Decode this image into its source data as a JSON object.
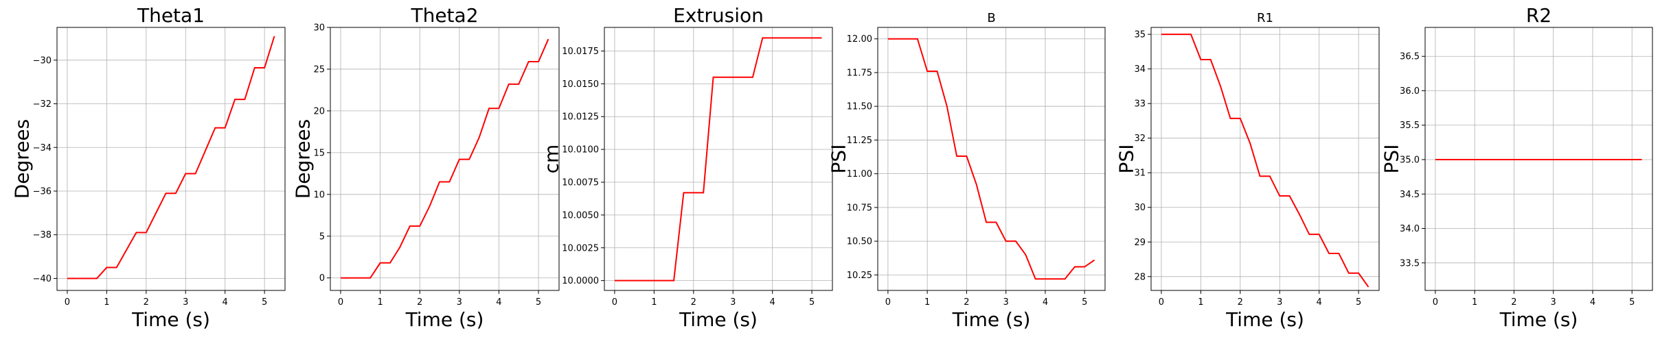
{
  "chart_data": [
    {
      "type": "line",
      "title": "Theta1",
      "xlabel": "Time (s)",
      "ylabel": "Degrees",
      "xlim": [
        -0.26,
        5.52
      ],
      "ylim": [
        -40.55,
        -28.5
      ],
      "xticks": [
        0,
        1,
        2,
        3,
        4,
        5
      ],
      "xtick_labels": [
        "0",
        "1",
        "2",
        "3",
        "4",
        "5"
      ],
      "yticks": [
        -40,
        -38,
        -36,
        -34,
        -32,
        -30
      ],
      "ytick_labels": [
        "−40",
        "−38",
        "−36",
        "−34",
        "−32",
        "−30"
      ],
      "grid": true,
      "series": [
        {
          "color": "#ff0000",
          "x": [
            0,
            0.25,
            0.5,
            0.75,
            1.0,
            1.25,
            1.5,
            1.75,
            2.0,
            2.25,
            2.5,
            2.75,
            3.0,
            3.25,
            3.5,
            3.75,
            4.0,
            4.25,
            4.5,
            4.75,
            5.0,
            5.25
          ],
          "y": [
            -40,
            -40,
            -40,
            -40,
            -39.5,
            -39.5,
            -38.7,
            -37.9,
            -37.9,
            -37.0,
            -36.1,
            -36.1,
            -35.2,
            -35.2,
            -34.15,
            -33.1,
            -33.1,
            -31.8,
            -31.8,
            -30.35,
            -30.35,
            -28.9
          ]
        }
      ]
    },
    {
      "type": "line",
      "title": "Theta2",
      "xlabel": "Time (s)",
      "ylabel": "Degrees",
      "xlim": [
        -0.26,
        5.52
      ],
      "ylim": [
        -1.5,
        30
      ],
      "xticks": [
        0,
        1,
        2,
        3,
        4,
        5
      ],
      "xtick_labels": [
        "0",
        "1",
        "2",
        "3",
        "4",
        "5"
      ],
      "yticks": [
        0,
        5,
        10,
        15,
        20,
        25,
        30
      ],
      "ytick_labels": [
        "0",
        "5",
        "10",
        "15",
        "20",
        "25",
        "30"
      ],
      "grid": true,
      "series": [
        {
          "color": "#ff0000",
          "x": [
            0,
            0.25,
            0.5,
            0.75,
            1.0,
            1.25,
            1.5,
            1.75,
            2.0,
            2.25,
            2.5,
            2.75,
            3.0,
            3.25,
            3.5,
            3.75,
            4.0,
            4.25,
            4.5,
            4.75,
            5.0,
            5.25
          ],
          "y": [
            0,
            0,
            0,
            0,
            1.8,
            1.8,
            3.7,
            6.2,
            6.2,
            8.6,
            11.5,
            11.5,
            14.2,
            14.2,
            16.8,
            20.3,
            20.3,
            23.2,
            23.2,
            25.9,
            25.9,
            28.6
          ]
        }
      ]
    },
    {
      "type": "line",
      "title": "Extrusion",
      "xlabel": "Time (s)",
      "ylabel": "cm",
      "xlim": [
        -0.26,
        5.52
      ],
      "ylim": [
        9.99925,
        10.0193
      ],
      "xticks": [
        0,
        1,
        2,
        3,
        4,
        5
      ],
      "xtick_labels": [
        "0",
        "1",
        "2",
        "3",
        "4",
        "5"
      ],
      "yticks": [
        10.0,
        10.0025,
        10.005,
        10.0075,
        10.01,
        10.0125,
        10.015,
        10.0175
      ],
      "ytick_labels": [
        "10.0000",
        "10.0025",
        "10.0050",
        "10.0075",
        "10.0100",
        "10.0125",
        "10.0150",
        "10.0175"
      ],
      "grid": true,
      "series": [
        {
          "color": "#ff0000",
          "x": [
            0,
            0.25,
            0.5,
            0.75,
            1.0,
            1.25,
            1.5,
            1.75,
            2.0,
            2.25,
            2.5,
            2.75,
            3.0,
            3.25,
            3.5,
            3.75,
            4.0,
            4.25,
            4.5,
            4.75,
            5.0,
            5.25
          ],
          "y": [
            10.0,
            10.0,
            10.0,
            10.0,
            10.0,
            10.0,
            10.0,
            10.0067,
            10.0067,
            10.0067,
            10.0155,
            10.0155,
            10.0155,
            10.0155,
            10.0155,
            10.0185,
            10.0185,
            10.0185,
            10.0185,
            10.0185,
            10.0185,
            10.0185
          ]
        }
      ]
    },
    {
      "type": "line",
      "title": "B",
      "xlabel": "Time (s)",
      "ylabel": "PSI",
      "xlim": [
        -0.26,
        5.52
      ],
      "ylim": [
        10.135,
        12.085
      ],
      "xticks": [
        0,
        1,
        2,
        3,
        4,
        5
      ],
      "xtick_labels": [
        "0",
        "1",
        "2",
        "3",
        "4",
        "5"
      ],
      "yticks": [
        10.25,
        10.5,
        10.75,
        11.0,
        11.25,
        11.5,
        11.75,
        12.0
      ],
      "ytick_labels": [
        "10.25",
        "10.50",
        "10.75",
        "11.00",
        "11.25",
        "11.50",
        "11.75",
        "12.00"
      ],
      "grid": true,
      "series": [
        {
          "color": "#ff0000",
          "x": [
            0,
            0.25,
            0.5,
            0.75,
            1.0,
            1.25,
            1.5,
            1.75,
            2.0,
            2.25,
            2.5,
            2.75,
            3.0,
            3.25,
            3.5,
            3.75,
            4.0,
            4.25,
            4.5,
            4.75,
            5.0,
            5.25
          ],
          "y": [
            12.0,
            12.0,
            12.0,
            12.0,
            11.76,
            11.76,
            11.5,
            11.13,
            11.13,
            10.92,
            10.64,
            10.64,
            10.5,
            10.5,
            10.4,
            10.22,
            10.22,
            10.22,
            10.22,
            10.31,
            10.31,
            10.36
          ]
        }
      ]
    },
    {
      "type": "line",
      "title": "R1",
      "xlabel": "Time (s)",
      "ylabel": "PSI",
      "xlim": [
        -0.26,
        5.52
      ],
      "ylim": [
        27.6,
        35.2
      ],
      "xticks": [
        0,
        1,
        2,
        3,
        4,
        5
      ],
      "xtick_labels": [
        "0",
        "1",
        "2",
        "3",
        "4",
        "5"
      ],
      "yticks": [
        28,
        29,
        30,
        31,
        32,
        33,
        34,
        35
      ],
      "ytick_labels": [
        "28",
        "29",
        "30",
        "31",
        "32",
        "33",
        "34",
        "35"
      ],
      "grid": true,
      "series": [
        {
          "color": "#ff0000",
          "x": [
            0,
            0.25,
            0.5,
            0.75,
            1.0,
            1.25,
            1.5,
            1.75,
            2.0,
            2.25,
            2.5,
            2.75,
            3.0,
            3.25,
            3.5,
            3.75,
            4.0,
            4.25,
            4.5,
            4.75,
            5.0,
            5.25
          ],
          "y": [
            35.0,
            35.0,
            35.0,
            35.0,
            34.27,
            34.27,
            33.5,
            32.57,
            32.57,
            31.85,
            30.9,
            30.9,
            30.33,
            30.33,
            29.8,
            29.22,
            29.22,
            28.67,
            28.67,
            28.1,
            28.1,
            27.7
          ]
        }
      ]
    },
    {
      "type": "line",
      "title": "R2",
      "xlabel": "Time (s)",
      "ylabel": "PSI",
      "xlim": [
        -0.26,
        5.52
      ],
      "ylim": [
        33.1,
        36.92
      ],
      "xticks": [
        0,
        1,
        2,
        3,
        4,
        5
      ],
      "xtick_labels": [
        "0",
        "1",
        "2",
        "3",
        "4",
        "5"
      ],
      "yticks": [
        33.5,
        34.0,
        34.5,
        35.0,
        35.5,
        36.0,
        36.5
      ],
      "ytick_labels": [
        "33.5",
        "34.0",
        "34.5",
        "35.0",
        "35.5",
        "36.0",
        "36.5"
      ],
      "grid": true,
      "series": [
        {
          "color": "#ff0000",
          "x": [
            0,
            0.25,
            0.5,
            0.75,
            1.0,
            1.25,
            1.5,
            1.75,
            2.0,
            2.25,
            2.5,
            2.75,
            3.0,
            3.25,
            3.5,
            3.75,
            4.0,
            4.25,
            4.5,
            4.75,
            5.0,
            5.25
          ],
          "y": [
            35.0,
            35.0,
            35.0,
            35.0,
            35.0,
            35.0,
            35.0,
            35.0,
            35.0,
            35.0,
            35.0,
            35.0,
            35.0,
            35.0,
            35.0,
            35.0,
            35.0,
            35.0,
            35.0,
            35.0,
            35.0,
            35.0
          ]
        }
      ]
    }
  ]
}
